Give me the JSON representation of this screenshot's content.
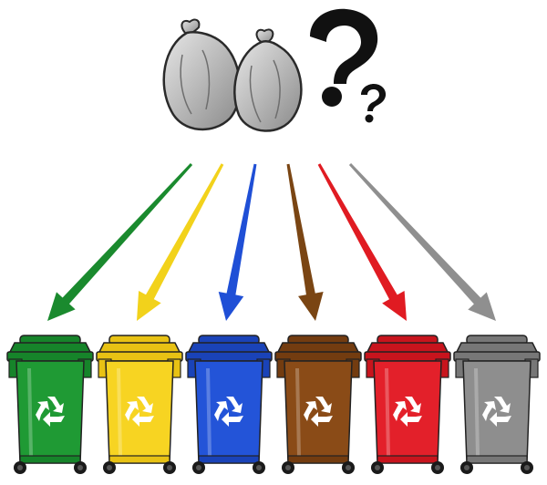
{
  "illustration": {
    "bags": {
      "count": 2,
      "icon": "garbage-bag-icon",
      "fill": "#b5b5b5",
      "outline": "#2a2a2a"
    },
    "question_marks": {
      "count": 2,
      "icon": "question-mark-icon",
      "color": "#111111"
    },
    "arrows": [
      {
        "name": "green-arrow",
        "color": "#1a8a2e"
      },
      {
        "name": "yellow-arrow",
        "color": "#f2d21b"
      },
      {
        "name": "blue-arrow",
        "color": "#1f4fd6"
      },
      {
        "name": "brown-arrow",
        "color": "#7a4513"
      },
      {
        "name": "red-arrow",
        "color": "#e01b22"
      },
      {
        "name": "gray-arrow",
        "color": "#8f8f8f"
      }
    ],
    "bins": [
      {
        "name": "green-bin",
        "body": "#1f9a34",
        "lid": "#16842a",
        "icon": "recycle-icon"
      },
      {
        "name": "yellow-bin",
        "body": "#f7d422",
        "lid": "#e8c214",
        "icon": "recycle-icon"
      },
      {
        "name": "blue-bin",
        "body": "#2354d8",
        "lid": "#1a43b8",
        "icon": "recycle-icon"
      },
      {
        "name": "brown-bin",
        "body": "#8a4b17",
        "lid": "#733c10",
        "icon": "recycle-icon"
      },
      {
        "name": "red-bin",
        "body": "#e3202a",
        "lid": "#c8141d",
        "icon": "recycle-icon"
      },
      {
        "name": "gray-bin",
        "body": "#8e8e8e",
        "lid": "#777777",
        "icon": "recycle-icon"
      }
    ]
  }
}
